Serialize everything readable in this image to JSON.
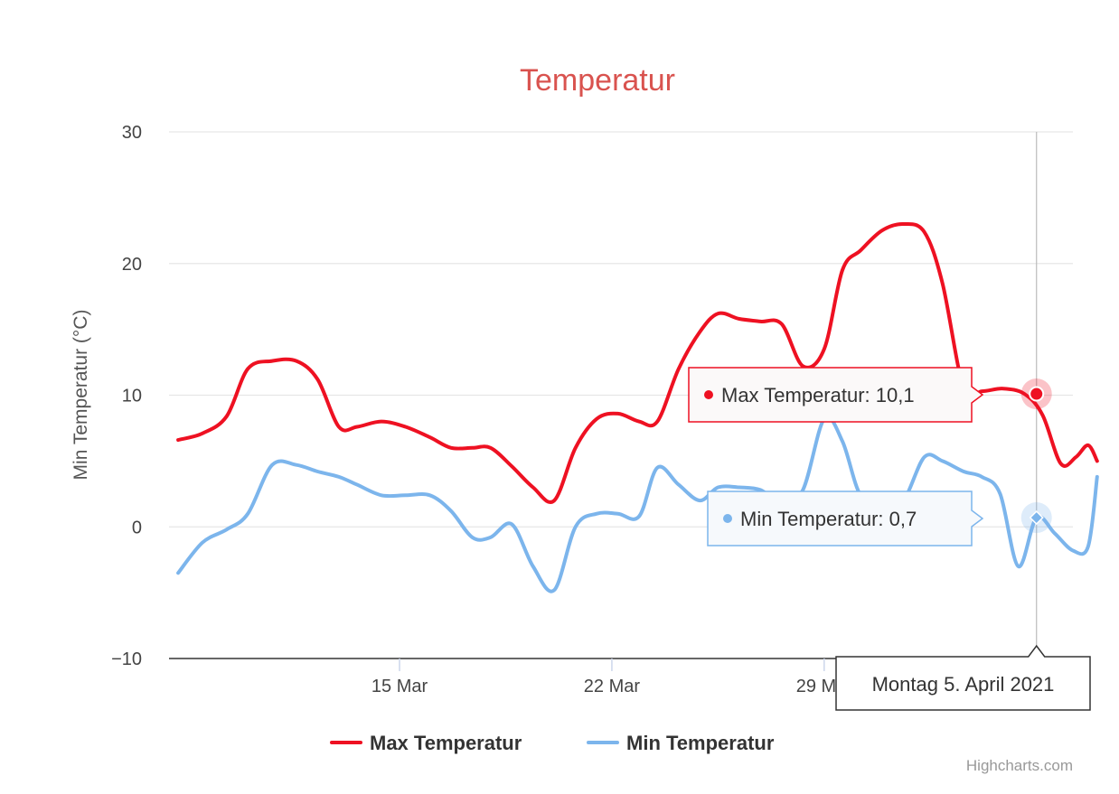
{
  "chart_data": {
    "type": "line",
    "title": "Temperatur",
    "ylabel": "Min Temperatur (°C)",
    "xlabel": "",
    "ylim": [
      -10,
      30
    ],
    "y_ticks": [
      "30",
      "20",
      "10",
      "0",
      "−10"
    ],
    "y_tick_values": [
      30,
      20,
      10,
      0,
      -10
    ],
    "x_ticks": [
      {
        "label": "15 Mar",
        "day": 15
      },
      {
        "label": "22 Mar",
        "day": 22
      },
      {
        "label": "29 Mar",
        "day": 29
      },
      {
        "label": "5. Apr",
        "day": 36
      }
    ],
    "x_range_days": [
      7.4,
      37.2
    ],
    "grid": true,
    "legend_position": "bottom-center",
    "series": [
      {
        "name": "Max Temperatur",
        "color": "#ee1122",
        "points": [
          [
            7.7,
            6.6
          ],
          [
            8.5,
            7.1
          ],
          [
            9.3,
            8.4
          ],
          [
            10.0,
            12.0
          ],
          [
            10.8,
            12.6
          ],
          [
            11.6,
            12.6
          ],
          [
            12.3,
            11.2
          ],
          [
            13.0,
            7.6
          ],
          [
            13.6,
            7.6
          ],
          [
            14.4,
            8.0
          ],
          [
            15.2,
            7.6
          ],
          [
            16.0,
            6.8
          ],
          [
            16.7,
            6.0
          ],
          [
            17.4,
            6.0
          ],
          [
            18.0,
            6.0
          ],
          [
            18.7,
            4.6
          ],
          [
            19.4,
            3.0
          ],
          [
            20.1,
            2.0
          ],
          [
            20.8,
            6.0
          ],
          [
            21.5,
            8.2
          ],
          [
            22.2,
            8.6
          ],
          [
            22.9,
            8.0
          ],
          [
            23.5,
            8.0
          ],
          [
            24.2,
            12.0
          ],
          [
            24.9,
            14.8
          ],
          [
            25.5,
            16.2
          ],
          [
            26.2,
            15.8
          ],
          [
            26.9,
            15.6
          ],
          [
            27.6,
            15.4
          ],
          [
            28.3,
            12.2
          ],
          [
            29.0,
            13.5
          ],
          [
            29.6,
            19.5
          ],
          [
            30.2,
            21.0
          ],
          [
            30.9,
            22.5
          ],
          [
            31.6,
            23.0
          ],
          [
            32.3,
            22.4
          ],
          [
            32.9,
            18.5
          ],
          [
            33.6,
            10.5
          ],
          [
            34.2,
            10.3
          ],
          [
            34.9,
            10.5
          ],
          [
            35.6,
            10.1
          ],
          [
            36.2,
            8.5
          ],
          [
            36.8,
            4.8
          ],
          [
            37.3,
            5.3
          ],
          [
            37.7,
            6.2
          ],
          [
            38.0,
            5.0
          ]
        ]
      },
      {
        "name": "Min Temperatur",
        "color": "#7cb5ec",
        "points": [
          [
            7.7,
            -3.5
          ],
          [
            8.5,
            -1.2
          ],
          [
            9.3,
            -0.2
          ],
          [
            10.0,
            1.0
          ],
          [
            10.8,
            4.7
          ],
          [
            11.6,
            4.7
          ],
          [
            12.3,
            4.2
          ],
          [
            13.0,
            3.8
          ],
          [
            13.6,
            3.2
          ],
          [
            14.4,
            2.4
          ],
          [
            15.2,
            2.4
          ],
          [
            16.0,
            2.4
          ],
          [
            16.7,
            1.2
          ],
          [
            17.4,
            -0.8
          ],
          [
            18.0,
            -0.8
          ],
          [
            18.7,
            0.2
          ],
          [
            19.4,
            -3.0
          ],
          [
            20.1,
            -4.8
          ],
          [
            20.8,
            0.0
          ],
          [
            21.5,
            1.0
          ],
          [
            22.2,
            1.0
          ],
          [
            22.9,
            0.8
          ],
          [
            23.5,
            4.5
          ],
          [
            24.2,
            3.2
          ],
          [
            24.9,
            2.0
          ],
          [
            25.5,
            3.0
          ],
          [
            26.2,
            3.0
          ],
          [
            26.9,
            2.8
          ],
          [
            27.6,
            1.8
          ],
          [
            28.3,
            2.8
          ],
          [
            29.0,
            8.2
          ],
          [
            29.6,
            6.5
          ],
          [
            30.2,
            2.4
          ],
          [
            30.9,
            2.0
          ],
          [
            31.6,
            2.0
          ],
          [
            32.3,
            5.3
          ],
          [
            32.9,
            5.0
          ],
          [
            33.6,
            4.2
          ],
          [
            34.2,
            3.8
          ],
          [
            34.8,
            2.5
          ],
          [
            35.4,
            -3.0
          ],
          [
            36.0,
            0.7
          ],
          [
            36.6,
            -0.5
          ],
          [
            37.2,
            -1.8
          ],
          [
            37.7,
            -1.5
          ],
          [
            38.0,
            3.8
          ]
        ]
      }
    ],
    "highlight_day": 36,
    "tooltips": [
      {
        "series": "Max Temperatur",
        "label": "Max Temperatur: 10,1",
        "value": 10.1
      },
      {
        "series": "Min Temperatur",
        "label": "Min Temperatur: 0,7",
        "value": 0.7
      }
    ],
    "x_tooltip": "Montag 5. April 2021",
    "credits": "Highcharts.com",
    "title_color": "#d9534f",
    "grid_color": "#e6e6e6"
  }
}
